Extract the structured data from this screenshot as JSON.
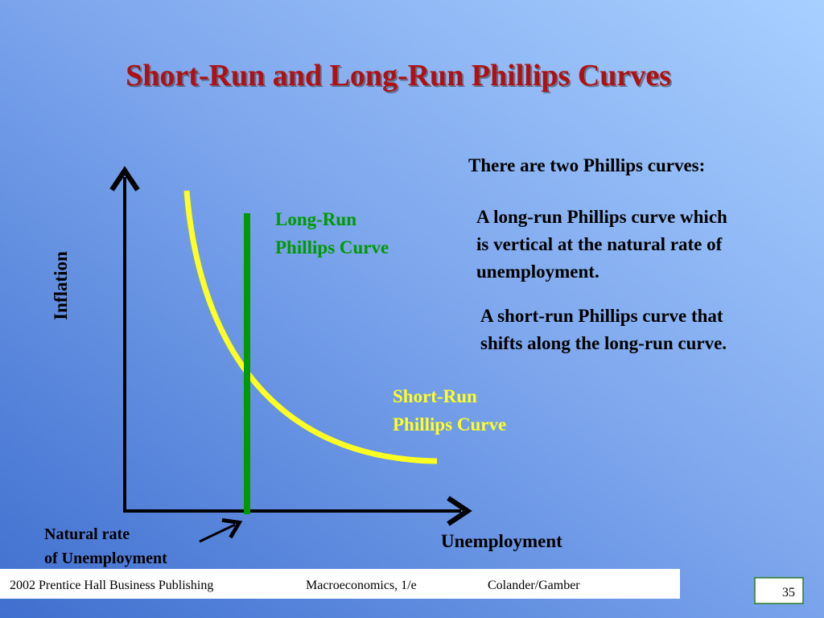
{
  "title": "Short-Run and Long-Run Phillips Curves",
  "diagram": {
    "y_axis_label": "Inflation",
    "x_axis_label": "Unemployment",
    "long_run_label": [
      "Long-Run",
      "Phillips Curve"
    ],
    "short_run_label": [
      "Short-Run",
      "Phillips Curve"
    ],
    "natural_rate_label": [
      "Natural rate",
      "of Unemployment"
    ]
  },
  "text": {
    "intro": "There are two Phillips curves:",
    "point1": [
      "A long-run Phillips curve which",
      "is vertical at the natural rate of",
      "unemployment."
    ],
    "point2": [
      "A short-run Phillips curve that",
      "shifts along the long-run curve."
    ]
  },
  "footer": {
    "publisher": "2002 Prentice Hall Business Publishing",
    "book": "Macroeconomics, 1/e",
    "authors": "Colander/Gamber",
    "page": "35"
  }
}
